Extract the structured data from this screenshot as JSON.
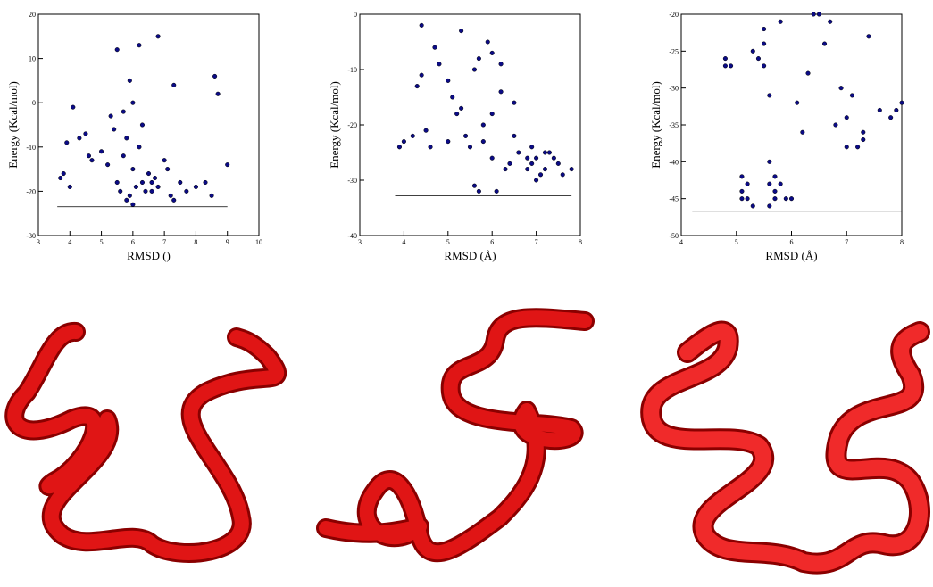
{
  "chart_data": [
    {
      "type": "scatter",
      "x_label": "RMSD ()",
      "y_label": "Energy (Kcal/mol)",
      "color": "#0b0b86",
      "xlim": [
        3,
        10
      ],
      "ylim": [
        -30,
        20
      ],
      "xticks": [
        3,
        4,
        5,
        6,
        7,
        8,
        9,
        10
      ],
      "yticks": [
        -30,
        -20,
        -10,
        0,
        10,
        20
      ],
      "reference_line": {
        "y": -23.5,
        "x": [
          3.6,
          9.0
        ]
      },
      "x": [
        3.7,
        3.8,
        3.9,
        4.1,
        4.3,
        4.5,
        4.6,
        4.7,
        5.0,
        5.2,
        5.4,
        5.5,
        5.6,
        5.7,
        5.8,
        5.9,
        5.9,
        6.0,
        6.0,
        6.1,
        6.2,
        6.3,
        6.4,
        6.5,
        6.6,
        6.7,
        6.8,
        7.0,
        7.2,
        7.3,
        7.3,
        7.5,
        7.7,
        8.0,
        8.3,
        8.5,
        8.6,
        8.7,
        9.0,
        5.5,
        6.2,
        6.8,
        5.8,
        6.0,
        6.3,
        5.7,
        6.6,
        7.1,
        4.0,
        5.3
      ],
      "y": [
        -17,
        -16,
        -9,
        -1,
        -8,
        -7,
        -12,
        -13,
        -11,
        -14,
        -6,
        -18,
        -20,
        -2,
        -22,
        -21,
        5,
        -23,
        -15,
        -19,
        -10,
        -18,
        -20,
        -16,
        -18,
        -17,
        -19,
        -13,
        -21,
        -22,
        4,
        -18,
        -20,
        -19,
        -18,
        -21,
        6,
        2,
        -14,
        12,
        13,
        15,
        -8,
        0,
        -5,
        -12,
        -20,
        -15,
        -19,
        -3
      ]
    },
    {
      "type": "scatter",
      "x_label": "RMSD (Å)",
      "y_label": "Energy (Kcal/mol)",
      "color": "#0b0b86",
      "xlim": [
        3,
        8
      ],
      "ylim": [
        -40,
        0
      ],
      "xticks": [
        3,
        4,
        5,
        6,
        7,
        8
      ],
      "yticks": [
        -40,
        -30,
        -20,
        -10,
        0
      ],
      "reference_line": {
        "y": -32.8,
        "x": [
          3.8,
          7.8
        ]
      },
      "x": [
        3.9,
        4.0,
        4.2,
        4.3,
        4.4,
        4.5,
        4.6,
        4.8,
        5.0,
        5.1,
        5.2,
        5.3,
        5.4,
        5.5,
        5.6,
        5.6,
        5.7,
        5.8,
        5.9,
        6.0,
        6.0,
        6.1,
        6.2,
        6.3,
        6.4,
        6.5,
        6.6,
        6.8,
        6.9,
        7.0,
        7.0,
        7.1,
        7.2,
        7.3,
        7.5,
        7.8,
        4.7,
        5.3,
        5.8,
        6.2,
        6.5,
        6.9,
        7.2,
        5.0,
        4.4,
        5.7,
        6.0,
        6.8,
        7.4,
        7.6
      ],
      "y": [
        -24,
        -23,
        -22,
        -13,
        -2,
        -21,
        -24,
        -9,
        -23,
        -15,
        -18,
        -3,
        -22,
        -24,
        -10,
        -31,
        -32,
        -23,
        -5,
        -26,
        -18,
        -32,
        -9,
        -28,
        -27,
        -16,
        -25,
        -28,
        -27,
        -30,
        -26,
        -29,
        -28,
        -25,
        -27,
        -28,
        -6,
        -17,
        -20,
        -14,
        -22,
        -24,
        -25,
        -12,
        -11,
        -8,
        -7,
        -26,
        -26,
        -29
      ]
    },
    {
      "type": "scatter",
      "x_label": "RMSD (Å)",
      "y_label": "Energy (Kcal/mol)",
      "color": "#0b0b86",
      "xlim": [
        4,
        8
      ],
      "ylim": [
        -50,
        -20
      ],
      "xticks": [
        4,
        5,
        6,
        7,
        8
      ],
      "yticks": [
        -50,
        -45,
        -40,
        -35,
        -30,
        -25,
        -20
      ],
      "reference_line": {
        "y": -46.7,
        "x": [
          4.2,
          8.0
        ]
      },
      "x": [
        4.8,
        4.8,
        4.9,
        5.1,
        5.1,
        5.2,
        5.1,
        5.2,
        5.3,
        5.3,
        5.4,
        5.5,
        5.5,
        5.6,
        5.6,
        5.6,
        5.7,
        5.7,
        5.8,
        5.8,
        5.9,
        6.0,
        6.1,
        6.2,
        6.3,
        6.4,
        6.5,
        6.6,
        6.8,
        6.9,
        7.0,
        7.1,
        7.2,
        7.3,
        7.4,
        7.6,
        7.8,
        7.9,
        8.0,
        5.6,
        5.7,
        5.5,
        6.7,
        7.0,
        7.3
      ],
      "y": [
        -26,
        -27,
        -27,
        -44,
        -45,
        -43,
        -42,
        -45,
        -46,
        -25,
        -26,
        -24,
        -22,
        -31,
        -43,
        -46,
        -42,
        -44,
        -21,
        -43,
        -45,
        -45,
        -32,
        -36,
        -28,
        -20,
        -20,
        -24,
        -35,
        -30,
        -34,
        -31,
        -38,
        -37,
        -23,
        -33,
        -34,
        -33,
        -32,
        -40,
        -45,
        -27,
        -21,
        -38,
        -36
      ]
    }
  ]
}
